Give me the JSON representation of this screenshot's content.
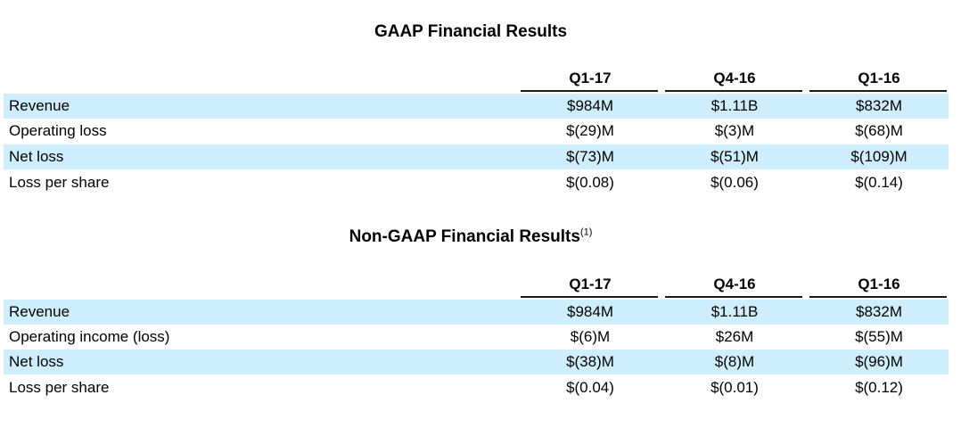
{
  "gaap": {
    "title": "GAAP Financial Results",
    "columns": [
      "Q1-17",
      "Q4-16",
      "Q1-16"
    ],
    "rows": [
      {
        "label": "Revenue",
        "values": [
          "$984M",
          "$1.11B",
          "$832M"
        ]
      },
      {
        "label": "Operating loss",
        "values": [
          "$(29)M",
          "$(3)M",
          "$(68)M"
        ]
      },
      {
        "label": "Net loss",
        "values": [
          "$(73)M",
          "$(51)M",
          "$(109)M"
        ]
      },
      {
        "label": "Loss per share",
        "values": [
          "$(0.08)",
          "$(0.06)",
          "$(0.14)"
        ]
      }
    ]
  },
  "non_gaap": {
    "title": "Non-GAAP Financial Results",
    "footnote_marker": "(1)",
    "columns": [
      "Q1-17",
      "Q4-16",
      "Q1-16"
    ],
    "rows": [
      {
        "label": "Revenue",
        "values": [
          "$984M",
          "$1.11B",
          "$832M"
        ]
      },
      {
        "label": "Operating income (loss)",
        "values": [
          "$(6)M",
          "$26M",
          "$(55)M"
        ]
      },
      {
        "label": "Net loss",
        "values": [
          "$(38)M",
          "$(8)M",
          "$(96)M"
        ]
      },
      {
        "label": "Loss per share",
        "values": [
          "$(0.04)",
          "$(0.01)",
          "$(0.12)"
        ]
      }
    ]
  },
  "colors": {
    "row_shade": "#cfeefd",
    "rule": "#1a1a1a"
  }
}
